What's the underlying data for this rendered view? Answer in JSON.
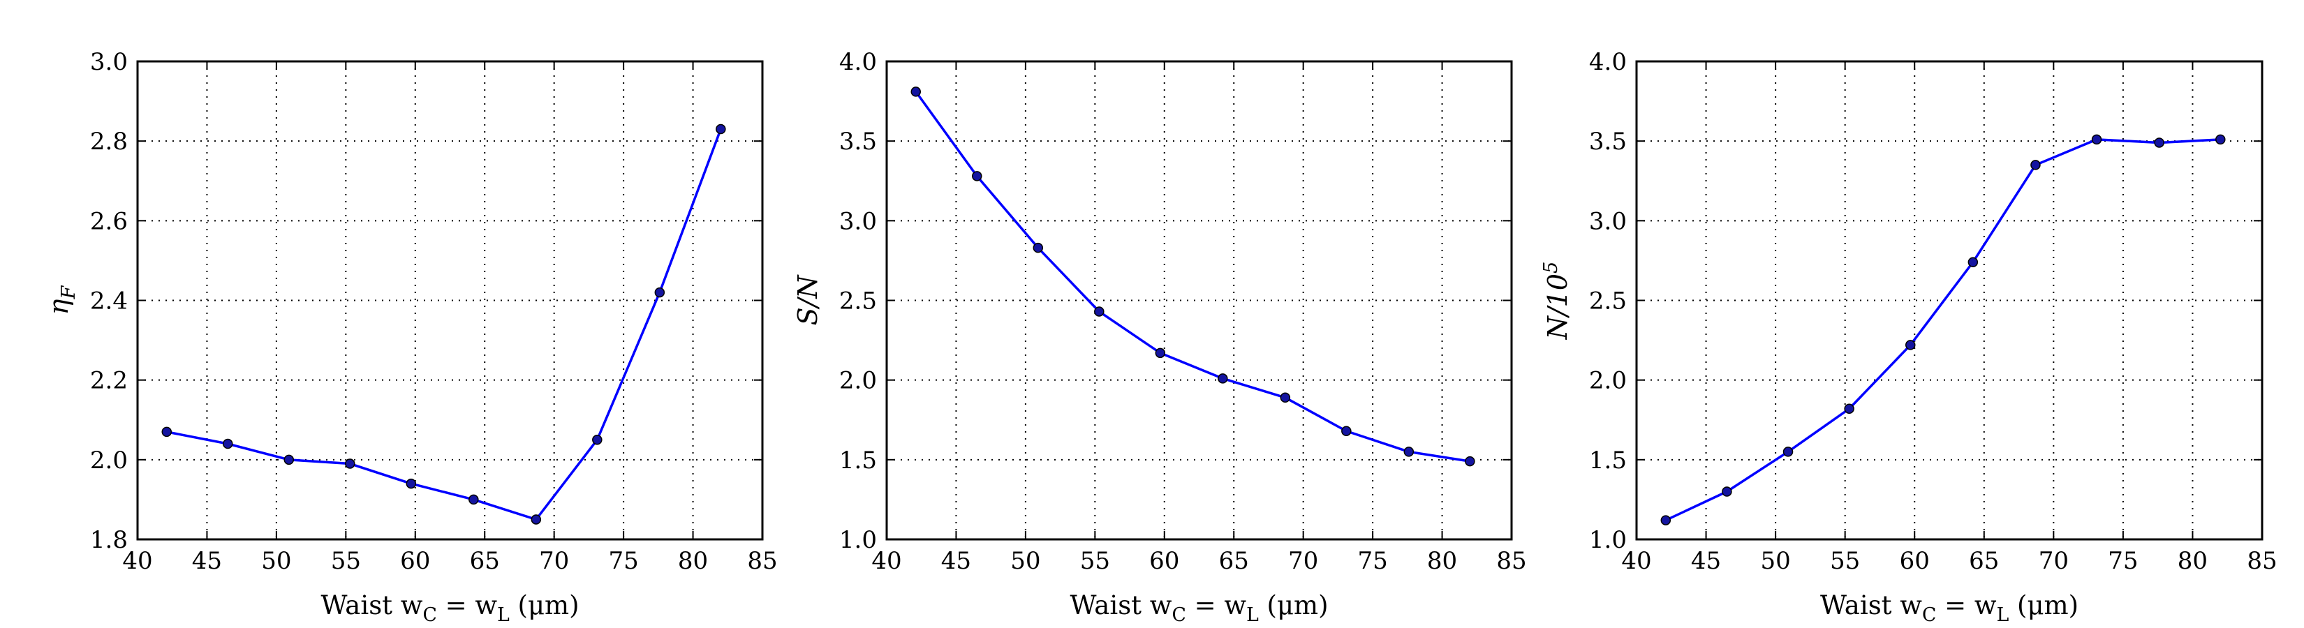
{
  "chart_data": [
    {
      "type": "line",
      "xlabel": "Waist w_C = w_L (μm)",
      "ylabel": "η_F",
      "xlim": [
        40,
        85
      ],
      "ylim": [
        1.8,
        3.0
      ],
      "xticks": [
        "40",
        "45",
        "50",
        "55",
        "60",
        "65",
        "70",
        "75",
        "80",
        "85"
      ],
      "yticks": [
        "1.8",
        "2.0",
        "2.2",
        "2.4",
        "2.6",
        "2.8",
        "3.0"
      ],
      "grid": true,
      "line_color": "#0000ff",
      "x": [
        42.1,
        46.5,
        50.9,
        55.3,
        59.7,
        64.2,
        68.7,
        73.1,
        77.6,
        82.0
      ],
      "values": [
        2.07,
        2.04,
        2.0,
        1.99,
        1.94,
        1.9,
        1.85,
        2.05,
        2.42,
        2.83
      ]
    },
    {
      "type": "line",
      "xlabel": "Waist w_C = w_L (μm)",
      "ylabel": "S/N",
      "xlim": [
        40,
        85
      ],
      "ylim": [
        1.0,
        4.0
      ],
      "xticks": [
        "40",
        "45",
        "50",
        "55",
        "60",
        "65",
        "70",
        "75",
        "80",
        "85"
      ],
      "yticks": [
        "1.0",
        "1.5",
        "2.0",
        "2.5",
        "3.0",
        "3.5",
        "4.0"
      ],
      "grid": true,
      "line_color": "#0000ff",
      "x": [
        42.1,
        46.5,
        50.9,
        55.3,
        59.7,
        64.2,
        68.7,
        73.1,
        77.6,
        82.0
      ],
      "values": [
        3.81,
        3.28,
        2.83,
        2.43,
        2.17,
        2.01,
        1.89,
        1.68,
        1.55,
        1.49
      ]
    },
    {
      "type": "line",
      "xlabel": "Waist w_C = w_L (μm)",
      "ylabel": "N/10^5",
      "xlim": [
        40,
        85
      ],
      "ylim": [
        1.0,
        4.0
      ],
      "xticks": [
        "40",
        "45",
        "50",
        "55",
        "60",
        "65",
        "70",
        "75",
        "80",
        "85"
      ],
      "yticks": [
        "1.0",
        "1.5",
        "2.0",
        "2.5",
        "3.0",
        "3.5",
        "4.0"
      ],
      "grid": true,
      "line_color": "#0000ff",
      "x": [
        42.1,
        46.5,
        50.9,
        55.3,
        59.7,
        64.2,
        68.7,
        73.1,
        77.6,
        82.0
      ],
      "values": [
        1.12,
        1.3,
        1.55,
        1.82,
        2.22,
        2.74,
        3.35,
        3.51,
        3.49,
        3.51
      ]
    }
  ]
}
